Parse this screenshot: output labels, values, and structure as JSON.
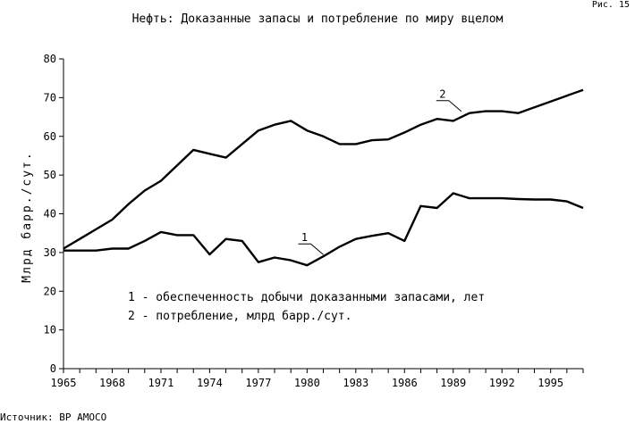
{
  "figure_number": "Рис. 15",
  "source": "Источник: BP AMOCO",
  "chart_data": {
    "type": "line",
    "title": "Нефть: Доказанные запасы и потребление по миру вцелом",
    "ylabel": "Млрд барр./сут.",
    "xlabel": "",
    "xlim": [
      1965,
      1997
    ],
    "ylim": [
      0,
      80
    ],
    "x_ticks": [
      1965,
      1968,
      1971,
      1974,
      1977,
      1980,
      1983,
      1986,
      1989,
      1992,
      1995
    ],
    "y_ticks": [
      0,
      10,
      20,
      30,
      40,
      50,
      60,
      70,
      80
    ],
    "grid": false,
    "legend": [
      "1 - обеспеченность добычи доказанными запасами, лет",
      "2 - потребление, млрд барр./сут."
    ],
    "series": [
      {
        "name": "1",
        "label_x": 1981,
        "x": [
          1965,
          1966,
          1967,
          1968,
          1969,
          1970,
          1971,
          1972,
          1973,
          1974,
          1975,
          1976,
          1977,
          1978,
          1979,
          1980,
          1981,
          1982,
          1983,
          1984,
          1985,
          1986,
          1987,
          1988,
          1989,
          1990,
          1991,
          1992,
          1993,
          1994,
          1995,
          1996,
          1997
        ],
        "values": [
          30.5,
          30.5,
          30.5,
          31,
          31,
          33,
          35.3,
          34.5,
          34.5,
          29.5,
          33.5,
          33,
          27.5,
          28.7,
          28,
          26.7,
          29,
          31.5,
          33.5,
          34.3,
          35,
          33,
          42,
          41.5,
          45.3,
          44,
          44,
          44,
          43.8,
          43.7,
          43.7,
          43.2,
          41.5
        ]
      },
      {
        "name": "2",
        "label_x": 1989.5,
        "x": [
          1965,
          1966,
          1967,
          1968,
          1969,
          1970,
          1971,
          1972,
          1973,
          1974,
          1975,
          1976,
          1977,
          1978,
          1979,
          1980,
          1981,
          1982,
          1983,
          1984,
          1985,
          1986,
          1987,
          1988,
          1989,
          1990,
          1991,
          1992,
          1993,
          1994,
          1995,
          1996,
          1997
        ],
        "values": [
          31,
          33.5,
          36,
          38.5,
          42.5,
          46,
          48.5,
          52.5,
          56.5,
          55.5,
          54.5,
          58,
          61.5,
          63,
          64,
          61.5,
          60,
          58,
          58,
          59,
          59.2,
          61,
          63,
          64.5,
          64,
          66,
          66.5,
          66.5,
          66,
          67.5,
          69,
          70.5,
          72
        ]
      }
    ]
  }
}
